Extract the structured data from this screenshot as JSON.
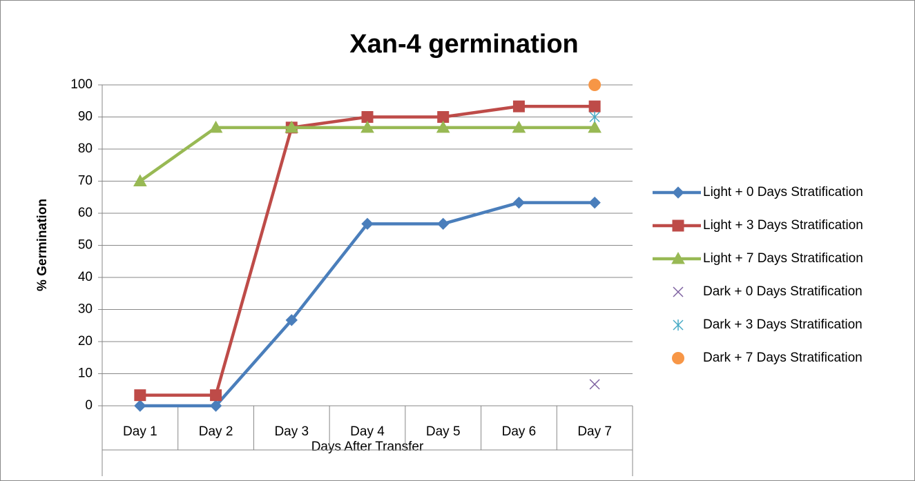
{
  "chart_data": {
    "type": "line",
    "title": "Xan-4 germination",
    "x_label": "Days After Transfer",
    "y_label": "% Germination",
    "categories": [
      "Day 1",
      "Day 2",
      "Day 3",
      "Day 4",
      "Day 5",
      "Day 6",
      "Day 7"
    ],
    "series": [
      {
        "name": "Light + 0 Days Stratification",
        "color": "#4a7ebb",
        "marker": "diamond",
        "line": true,
        "values": [
          0,
          0,
          26.7,
          56.7,
          56.7,
          63.3,
          63.3
        ]
      },
      {
        "name": "Light + 3 Days Stratification",
        "color": "#be4b48",
        "marker": "square",
        "line": true,
        "values": [
          3.3,
          3.3,
          86.7,
          90,
          90,
          93.3,
          93.3
        ]
      },
      {
        "name": "Light + 7 Days Stratification",
        "color": "#98b954",
        "marker": "triangle",
        "line": true,
        "values": [
          70,
          86.7,
          86.7,
          86.7,
          86.7,
          86.7,
          86.7
        ]
      },
      {
        "name": "Dark + 0 Days Stratification",
        "color": "#7d60a0",
        "marker": "x",
        "line": false,
        "values": [
          null,
          null,
          null,
          null,
          null,
          null,
          6.7
        ]
      },
      {
        "name": "Dark + 3 Days Stratification",
        "color": "#46aac5",
        "marker": "star",
        "line": false,
        "values": [
          null,
          null,
          null,
          null,
          null,
          null,
          90
        ]
      },
      {
        "name": "Dark + 7 Days Stratification",
        "color": "#f79646",
        "marker": "circle",
        "line": false,
        "values": [
          null,
          null,
          null,
          null,
          null,
          null,
          100
        ]
      }
    ],
    "ylim": [
      0,
      100
    ],
    "yticks": [
      0,
      10,
      20,
      30,
      40,
      50,
      60,
      70,
      80,
      90,
      100
    ],
    "grid": true,
    "legend": "right"
  }
}
